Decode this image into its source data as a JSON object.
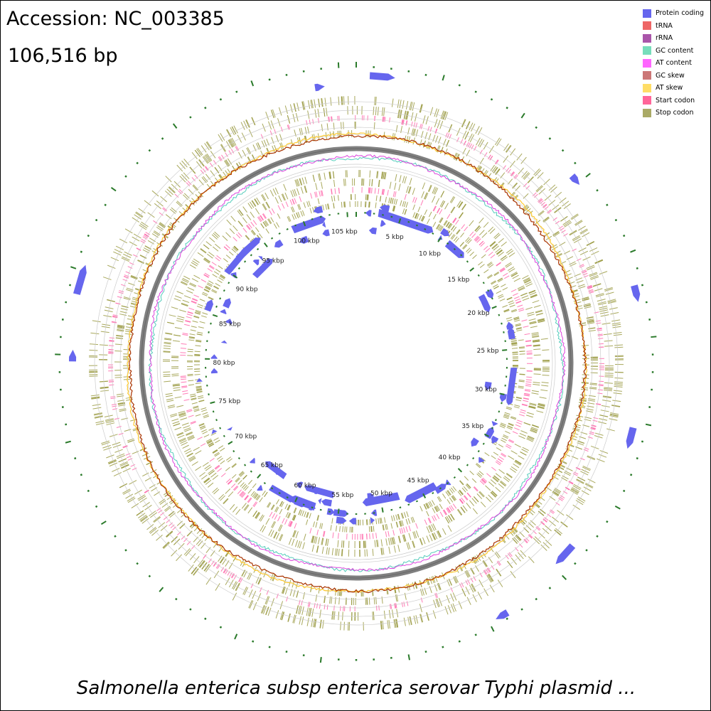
{
  "header": {
    "accession": "Accession: NC_003385",
    "length": "106,516 bp"
  },
  "footer": {
    "organism": "Salmonella enterica subsp enterica serovar Typhi plasmid ..."
  },
  "legend": [
    {
      "label": "Protein coding",
      "color": "#6666ee"
    },
    {
      "label": "tRNA",
      "color": "#ee6666"
    },
    {
      "label": "rRNA",
      "color": "#aa55aa"
    },
    {
      "label": "GC content",
      "color": "#77ddbb"
    },
    {
      "label": "AT content",
      "color": "#ff66ff"
    },
    {
      "label": "GC skew",
      "color": "#cc7777"
    },
    {
      "label": "AT skew",
      "color": "#ffdd66"
    },
    {
      "label": "Start codon",
      "color": "#ff6699"
    },
    {
      "label": "Stop codon",
      "color": "#aaaa66"
    }
  ],
  "map": {
    "genome_length_bp": 106516,
    "tick_labels": [
      "5 kbp",
      "10 kbp",
      "15 kbp",
      "20 kbp",
      "25 kbp",
      "30 kbp",
      "35 kbp",
      "40 kbp",
      "45 kbp",
      "50 kbp",
      "55 kbp",
      "60 kbp",
      "65 kbp",
      "70 kbp",
      "75 kbp",
      "80 kbp",
      "85 kbp",
      "90 kbp",
      "95 kbp",
      "100 kbp",
      "105 kbp"
    ],
    "tick_positions_kbp": [
      5,
      10,
      15,
      20,
      25,
      30,
      35,
      40,
      45,
      50,
      55,
      60,
      65,
      70,
      75,
      80,
      85,
      90,
      95,
      100,
      105
    ],
    "colors": {
      "protein": "#6666ee",
      "stop": "#9a9a40",
      "start": "#ff66aa",
      "tick": "#2a7a2a",
      "backbone": "#808080",
      "gc_line": "#55ccbb",
      "at_line": "#dd44dd",
      "skew_dark": "#aa3300",
      "skew_light": "#ffcc33"
    }
  }
}
